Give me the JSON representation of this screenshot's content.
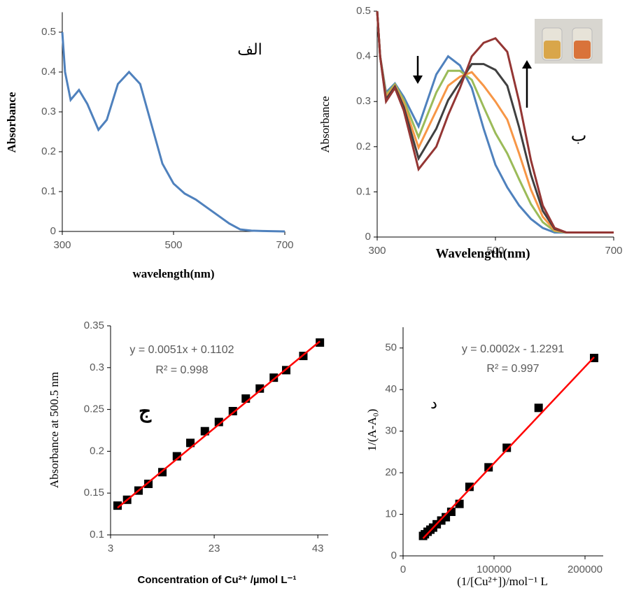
{
  "chart_data": [
    {
      "type": "line",
      "x_label": "wavelength(nm)",
      "y_label": "Absorbance",
      "annotations": [
        "الف"
      ],
      "x": [
        300,
        305,
        315,
        330,
        345,
        365,
        380,
        400,
        420,
        440,
        460,
        480,
        500,
        520,
        540,
        560,
        580,
        600,
        620,
        640,
        660,
        700
      ],
      "values": [
        0.5,
        0.4,
        0.33,
        0.355,
        0.32,
        0.255,
        0.28,
        0.37,
        0.4,
        0.37,
        0.27,
        0.17,
        0.12,
        0.095,
        0.08,
        0.06,
        0.04,
        0.02,
        0.005,
        0.002,
        0.001,
        0
      ],
      "color": "#4f81bd",
      "xlim": [
        300,
        700
      ],
      "xticks": [
        300,
        500,
        700
      ],
      "ylim": [
        0,
        0.55
      ],
      "yticks": [
        0,
        0.1,
        0.2,
        0.3,
        0.4,
        0.5
      ]
    },
    {
      "type": "line",
      "x_label": "Wavelength(nm)",
      "y_label": "Absorbance",
      "annotations": [
        "ب"
      ],
      "x": [
        300,
        305,
        315,
        330,
        345,
        370,
        400,
        420,
        440,
        460,
        480,
        500,
        520,
        540,
        560,
        580,
        600,
        620,
        650,
        700
      ],
      "series": [
        {
          "color": "#4f81bd",
          "values": [
            0.5,
            0.4,
            0.32,
            0.34,
            0.31,
            0.245,
            0.36,
            0.4,
            0.38,
            0.33,
            0.24,
            0.16,
            0.11,
            0.07,
            0.04,
            0.02,
            0.01,
            0.01,
            0.01,
            0.01
          ]
        },
        {
          "color": "#9bbb59",
          "values": [
            0.5,
            0.4,
            0.315,
            0.338,
            0.303,
            0.221,
            0.32,
            0.368,
            0.368,
            0.348,
            0.288,
            0.23,
            0.185,
            0.128,
            0.073,
            0.033,
            0.013,
            0.01,
            0.01,
            0.01
          ]
        },
        {
          "color": "#f79646",
          "values": [
            0.5,
            0.4,
            0.31,
            0.335,
            0.295,
            0.198,
            0.28,
            0.335,
            0.355,
            0.365,
            0.335,
            0.3,
            0.26,
            0.185,
            0.105,
            0.045,
            0.015,
            0.01,
            0.01,
            0.01
          ]
        },
        {
          "color": "#404040",
          "values": [
            0.5,
            0.4,
            0.305,
            0.333,
            0.288,
            0.174,
            0.24,
            0.303,
            0.343,
            0.383,
            0.383,
            0.37,
            0.335,
            0.243,
            0.138,
            0.058,
            0.018,
            0.01,
            0.01,
            0.01
          ]
        },
        {
          "color": "#943634",
          "values": [
            0.5,
            0.4,
            0.3,
            0.33,
            0.28,
            0.15,
            0.2,
            0.27,
            0.33,
            0.4,
            0.43,
            0.44,
            0.41,
            0.3,
            0.17,
            0.07,
            0.02,
            0.01,
            0.01,
            0.01
          ]
        }
      ],
      "xlim": [
        300,
        700
      ],
      "xticks": [
        300,
        500,
        700
      ],
      "ylim": [
        0,
        0.5
      ],
      "yticks": [
        0,
        0.1,
        0.2,
        0.3,
        0.4,
        0.5
      ]
    },
    {
      "type": "scatter",
      "x_label": "Concentration of Cu²⁺ /µmol L⁻¹",
      "y_label": "Absorbance at 500.5 nm",
      "annotations": [
        "y = 0.0051x + 0.1102",
        "R² = 0.998",
        "ج"
      ],
      "x": [
        4.35,
        6.2,
        8.4,
        10.3,
        13,
        15.8,
        18.4,
        21.2,
        23.9,
        26.6,
        29.1,
        31.8,
        34.5,
        36.9,
        40.2,
        43.4
      ],
      "values": [
        0.135,
        0.142,
        0.153,
        0.161,
        0.175,
        0.194,
        0.21,
        0.224,
        0.235,
        0.248,
        0.263,
        0.275,
        0.288,
        0.297,
        0.314,
        0.33
      ],
      "color": "#000000",
      "fit": {
        "x": [
          4.35,
          43.4
        ],
        "values": [
          0.1324,
          0.3315
        ],
        "color": "#ff0000"
      },
      "xlim": [
        3,
        45
      ],
      "xticks": [
        3,
        23,
        43
      ],
      "ylim": [
        0.1,
        0.35
      ],
      "yticks": [
        0.1,
        0.15,
        0.2,
        0.25,
        0.3,
        0.35
      ]
    },
    {
      "type": "scatter",
      "x_label": "(1/[Cu²⁺])/mol⁻¹ L",
      "y_label": "1/(A-A₀)",
      "annotations": [
        "y = 0.0002x - 1.2291",
        "R² = 0.997",
        "د"
      ],
      "x": [
        22000,
        24000,
        27000,
        30000,
        33000,
        37000,
        42000,
        47000,
        53000,
        62000,
        73000,
        94000,
        114000,
        149000,
        210000
      ],
      "values": [
        4.8,
        5.2,
        5.8,
        6.3,
        6.8,
        7.6,
        8.5,
        9.3,
        10.6,
        12.5,
        16.6,
        21.3,
        26,
        35.6,
        47.6
      ],
      "color": "#000000",
      "fit": {
        "x": [
          22000,
          210000
        ],
        "values": [
          4.2,
          47.8
        ],
        "color": "#ff0000"
      },
      "xlim": [
        0,
        220000
      ],
      "xticks": [
        0,
        100000,
        200000
      ],
      "ylim": [
        0,
        55
      ],
      "yticks": [
        0,
        10,
        20,
        30,
        40,
        50
      ]
    }
  ]
}
